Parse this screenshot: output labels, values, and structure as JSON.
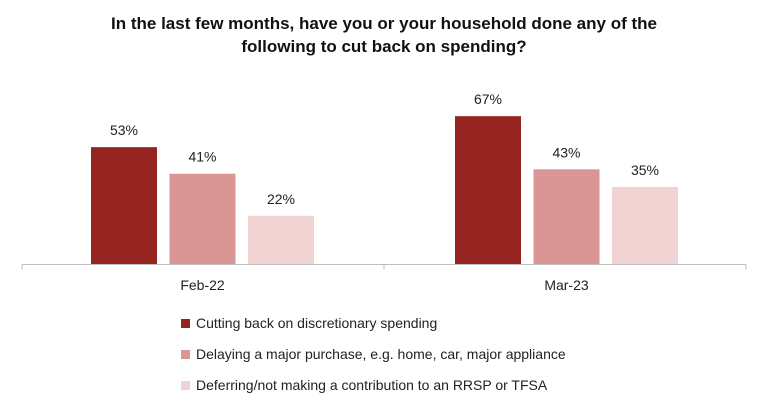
{
  "chart_data": {
    "type": "bar",
    "title_lines": [
      "In the last few months, have you or your household done any of the",
      "following to cut back on spending?"
    ],
    "categories": [
      "Feb-22",
      "Mar-23"
    ],
    "series": [
      {
        "name": "Cutting back on discretionary spending",
        "values": [
          53,
          67
        ],
        "color": "#952420"
      },
      {
        "name": "Delaying a major purchase, e.g. home, car, major appliance",
        "values": [
          41,
          43
        ],
        "color": "#d99694"
      },
      {
        "name": "Deferring/not making a contribution to an RRSP or TFSA",
        "values": [
          22,
          35
        ],
        "color": "#f0d3d2"
      }
    ],
    "value_suffix": "%",
    "ylim": [
      0,
      100
    ],
    "grid": false,
    "legend_position": "bottom"
  }
}
